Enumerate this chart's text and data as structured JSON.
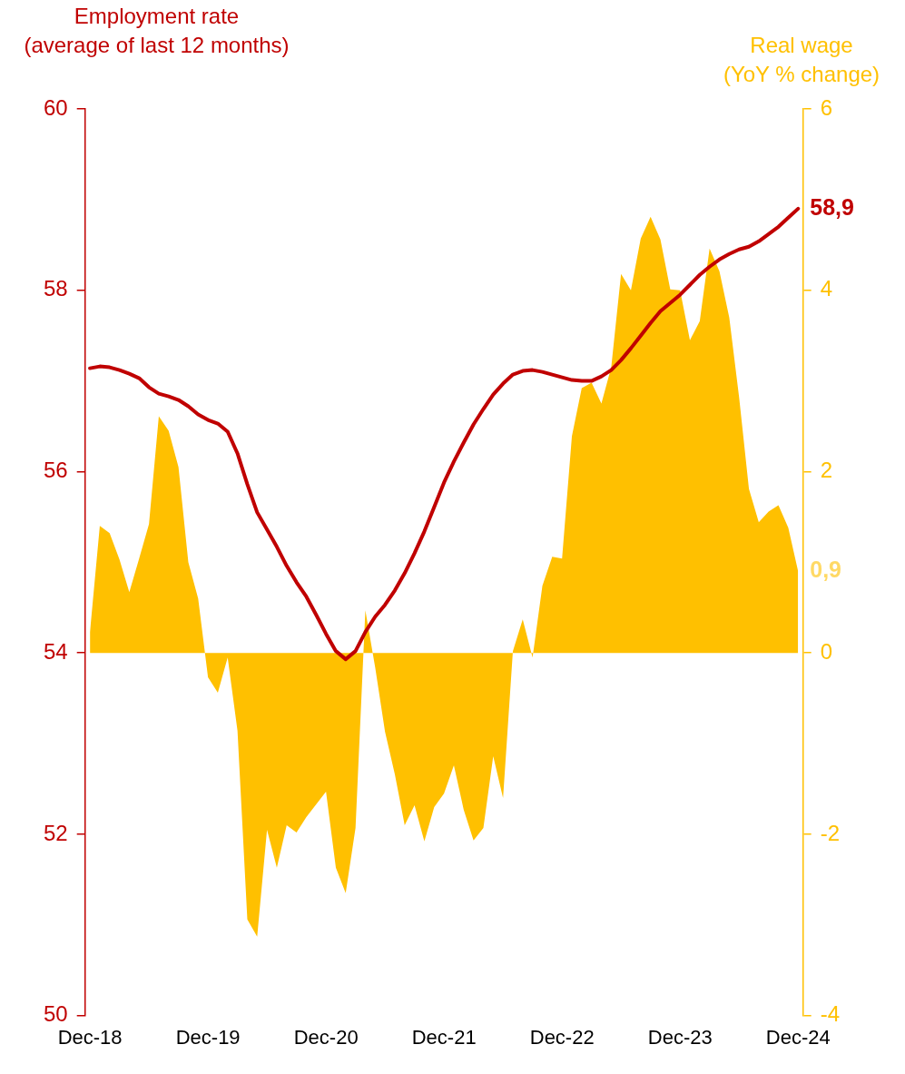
{
  "chart_data": {
    "type": "line",
    "ylabel": "Employment rate\n(average of last 12 months)",
    "y2label": "Real wage\n(YoY % change)",
    "categories": [
      "Dec-18",
      null,
      null,
      null,
      null,
      null,
      null,
      null,
      null,
      null,
      null,
      null,
      "Dec-19",
      null,
      null,
      null,
      null,
      null,
      null,
      null,
      null,
      null,
      null,
      null,
      "Dec-20",
      null,
      null,
      null,
      null,
      null,
      null,
      null,
      null,
      null,
      null,
      null,
      "Dec-21",
      null,
      null,
      null,
      null,
      null,
      null,
      null,
      null,
      null,
      null,
      null,
      "Dec-22",
      null,
      null,
      null,
      null,
      null,
      null,
      null,
      null,
      null,
      null,
      null,
      "Dec-23",
      null,
      null,
      null,
      null,
      null,
      null,
      null,
      null,
      null,
      null,
      null,
      "Dec-24"
    ],
    "series": [
      {
        "type": "area",
        "axis": "y2",
        "color": "#ffc000",
        "values": [
          0.23,
          1.4,
          1.32,
          1.03,
          0.67,
          1.04,
          1.42,
          2.61,
          2.45,
          2.05,
          1.0,
          0.6,
          -0.27,
          -0.44,
          -0.05,
          -0.86,
          -2.94,
          -3.13,
          -1.95,
          -2.37,
          -1.9,
          -1.98,
          -1.81,
          -1.67,
          -1.53,
          -2.37,
          -2.65,
          -1.93,
          0.47,
          -0.16,
          -0.87,
          -1.34,
          -1.9,
          -1.68,
          -2.08,
          -1.7,
          -1.55,
          -1.24,
          -1.73,
          -2.07,
          -1.93,
          -1.14,
          -1.6,
          0.02,
          0.37,
          -0.05,
          0.74,
          1.06,
          1.04,
          2.39,
          2.92,
          2.98,
          2.75,
          3.15,
          4.18,
          4.0,
          4.57,
          4.81,
          4.56,
          4.01,
          4.0,
          3.45,
          3.66,
          4.46,
          4.21,
          3.7,
          2.82,
          1.81,
          1.44,
          1.56,
          1.63,
          1.38,
          0.9
        ],
        "value_labels": [
          null,
          null,
          null,
          null,
          null,
          null,
          null,
          null,
          null,
          null,
          null,
          null,
          null,
          null,
          null,
          null,
          null,
          null,
          null,
          null,
          null,
          null,
          null,
          null,
          null,
          null,
          null,
          null,
          null,
          null,
          null,
          null,
          null,
          null,
          null,
          null,
          null,
          null,
          null,
          null,
          null,
          null,
          null,
          null,
          null,
          null,
          null,
          null,
          null,
          null,
          null,
          null,
          null,
          null,
          null,
          null,
          null,
          null,
          null,
          null,
          null,
          null,
          null,
          null,
          null,
          null,
          null,
          null,
          null,
          null,
          null,
          null,
          "0,9"
        ]
      },
      {
        "type": "line",
        "axis": "y",
        "color": "#c00000",
        "values": [
          57.14,
          57.16,
          57.15,
          57.12,
          57.08,
          57.03,
          56.93,
          56.86,
          56.83,
          56.79,
          56.72,
          56.63,
          56.57,
          56.53,
          56.44,
          56.2,
          55.86,
          55.55,
          55.36,
          55.17,
          54.96,
          54.78,
          54.62,
          54.42,
          54.21,
          54.02,
          53.93,
          54.02,
          54.23,
          54.4,
          54.53,
          54.69,
          54.88,
          55.1,
          55.34,
          55.61,
          55.88,
          56.11,
          56.32,
          56.52,
          56.69,
          56.85,
          56.97,
          57.07,
          57.11,
          57.12,
          57.1,
          57.07,
          57.04,
          57.01,
          57.0,
          57.0,
          57.05,
          57.12,
          57.23,
          57.36,
          57.5,
          57.64,
          57.77,
          57.86,
          57.95,
          58.06,
          58.17,
          58.26,
          58.34,
          58.4,
          58.45,
          58.48,
          58.54,
          58.62,
          58.7,
          58.8,
          58.9
        ],
        "value_labels": [
          null,
          null,
          null,
          null,
          null,
          null,
          null,
          null,
          null,
          null,
          null,
          null,
          null,
          null,
          null,
          null,
          null,
          null,
          null,
          null,
          null,
          null,
          null,
          null,
          null,
          null,
          null,
          null,
          null,
          null,
          null,
          null,
          null,
          null,
          null,
          null,
          null,
          null,
          null,
          null,
          null,
          null,
          null,
          null,
          null,
          null,
          null,
          null,
          null,
          null,
          null,
          null,
          null,
          null,
          null,
          null,
          null,
          null,
          null,
          null,
          null,
          null,
          null,
          null,
          null,
          null,
          null,
          null,
          null,
          null,
          null,
          null,
          "58,9"
        ]
      }
    ],
    "ylim": [
      50,
      60
    ],
    "yticks": [
      50,
      52,
      54,
      56,
      58,
      60
    ],
    "y2lim": [
      -4,
      6
    ],
    "y2ticks": [
      -4,
      -2,
      0,
      2,
      4,
      6
    ],
    "grid": false,
    "legend": false,
    "marker": "none"
  }
}
